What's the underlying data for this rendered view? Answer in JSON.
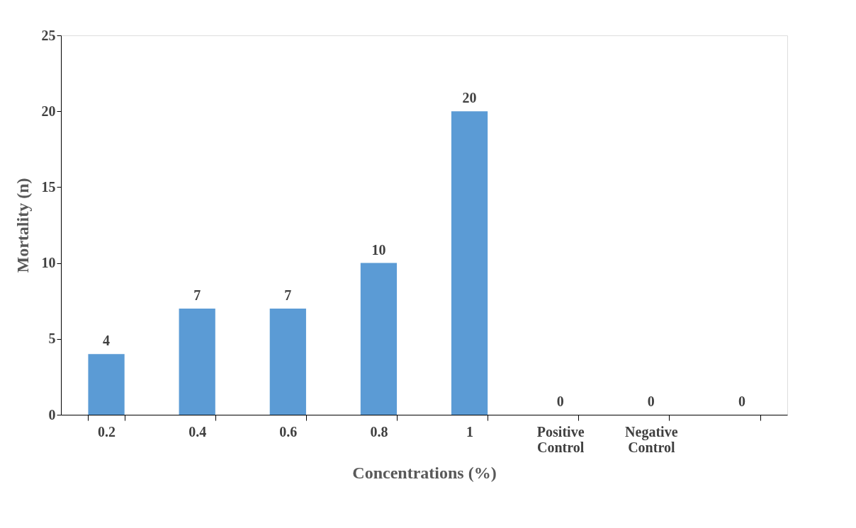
{
  "chart_data": {
    "type": "bar",
    "xlabel": "Concentrations (%)",
    "ylabel": "Mortality (n)",
    "categories": [
      "0.2",
      "0.4",
      "0.6",
      "0.8",
      "1",
      "Positive Control",
      "Negative Control",
      null
    ],
    "values": [
      4,
      7,
      7,
      10,
      20,
      0,
      0,
      0
    ],
    "color": "#5b9bd5",
    "ylim": [
      0,
      25
    ],
    "yticks": [
      0,
      5,
      10,
      15,
      20,
      25
    ],
    "grid": false,
    "data_labels": true
  }
}
